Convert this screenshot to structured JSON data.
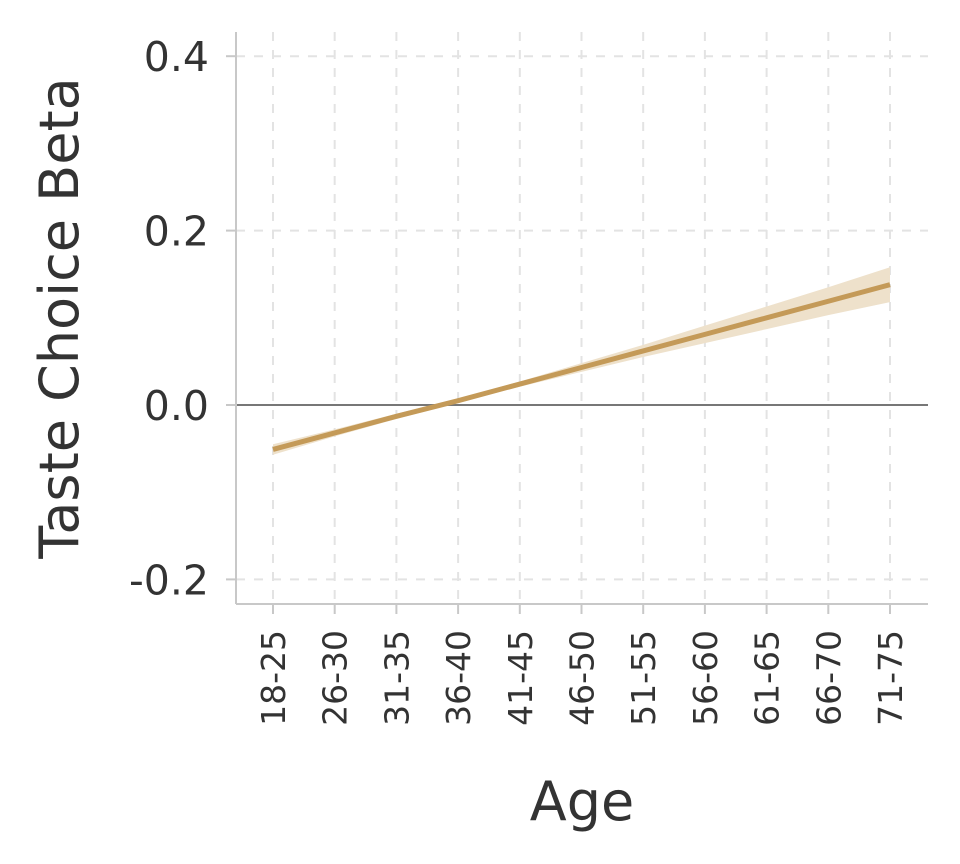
{
  "chart_data": {
    "type": "line",
    "title": "",
    "xlabel": "Age",
    "ylabel": "Taste Choice Beta",
    "categories": [
      "18-25",
      "26-30",
      "31-35",
      "36-40",
      "41-45",
      "46-50",
      "51-55",
      "56-60",
      "61-65",
      "66-70",
      "71-75"
    ],
    "yticks": [
      "-0.2",
      "0.0",
      "0.2",
      "0.4"
    ],
    "ylim": [
      -0.23,
      0.43
    ],
    "grid": true,
    "reference_line_y": 0,
    "series": [
      {
        "values": [
          -0.051,
          -0.032,
          -0.013,
          0.005,
          0.024,
          0.043,
          0.062,
          0.081,
          0.1,
          0.119,
          0.138
        ],
        "ci_lower": [
          -0.057,
          -0.036,
          -0.016,
          0.003,
          0.021,
          0.038,
          0.055,
          0.071,
          0.087,
          0.103,
          0.118
        ],
        "ci_upper": [
          -0.045,
          -0.028,
          -0.01,
          0.007,
          0.027,
          0.048,
          0.069,
          0.091,
          0.113,
          0.135,
          0.158
        ]
      }
    ],
    "colors": {
      "line": "#C49A58",
      "band": "#EEE1CB",
      "zero_line": "#777777",
      "grid": "#E3E3E3",
      "axis": "#C8C8C8",
      "text": "#333333"
    }
  }
}
